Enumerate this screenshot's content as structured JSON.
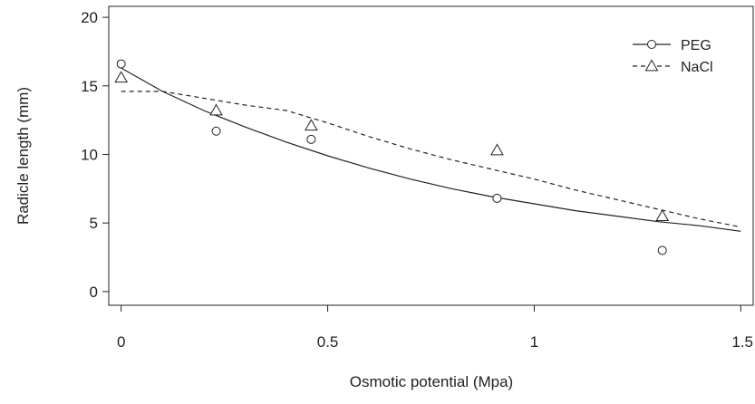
{
  "chart_data": {
    "type": "scatter",
    "xlabel": "Osmotic potential (Mpa)",
    "ylabel": "Radicle length (mm)",
    "xlim": [
      -0.03,
      1.53
    ],
    "ylim": [
      -1,
      20.8
    ],
    "xticks": [
      0,
      0.5,
      1,
      1.5
    ],
    "xtick_labels": [
      "0",
      "0.5",
      "1",
      "1.5"
    ],
    "yticks": [
      0,
      5,
      10,
      15,
      20
    ],
    "ytick_labels": [
      "0",
      "5",
      "10",
      "15",
      "20"
    ],
    "legend_position": "top-right",
    "grid": false,
    "series": [
      {
        "name": "PEG",
        "marker": "circle",
        "line_style": "solid",
        "points": [
          {
            "x": 0,
            "y": 16.6
          },
          {
            "x": 0.23,
            "y": 11.7
          },
          {
            "x": 0.46,
            "y": 11.1
          },
          {
            "x": 0.91,
            "y": 6.8
          },
          {
            "x": 1.31,
            "y": 3.0
          }
        ],
        "fit": [
          {
            "x": 0,
            "y": 16.3
          },
          {
            "x": 0.1,
            "y": 14.6
          },
          {
            "x": 0.2,
            "y": 13.2
          },
          {
            "x": 0.3,
            "y": 12.0
          },
          {
            "x": 0.4,
            "y": 10.9
          },
          {
            "x": 0.5,
            "y": 9.9
          },
          {
            "x": 0.6,
            "y": 9.0
          },
          {
            "x": 0.7,
            "y": 8.2
          },
          {
            "x": 0.8,
            "y": 7.5
          },
          {
            "x": 0.9,
            "y": 6.9
          },
          {
            "x": 1.0,
            "y": 6.4
          },
          {
            "x": 1.1,
            "y": 5.9
          },
          {
            "x": 1.2,
            "y": 5.5
          },
          {
            "x": 1.3,
            "y": 5.1
          },
          {
            "x": 1.4,
            "y": 4.8
          },
          {
            "x": 1.5,
            "y": 4.4
          }
        ]
      },
      {
        "name": "NaCl",
        "marker": "triangle",
        "line_style": "dashed",
        "points": [
          {
            "x": 0,
            "y": 15.6
          },
          {
            "x": 0.23,
            "y": 13.2
          },
          {
            "x": 0.46,
            "y": 12.1
          },
          {
            "x": 0.91,
            "y": 10.3
          },
          {
            "x": 1.31,
            "y": 5.5
          }
        ],
        "fit": [
          {
            "x": 0,
            "y": 14.6
          },
          {
            "x": 0.1,
            "y": 14.6
          },
          {
            "x": 0.2,
            "y": 14.1
          },
          {
            "x": 0.3,
            "y": 13.6
          },
          {
            "x": 0.4,
            "y": 13.2
          },
          {
            "x": 0.5,
            "y": 12.3
          },
          {
            "x": 0.6,
            "y": 11.3
          },
          {
            "x": 0.7,
            "y": 10.4
          },
          {
            "x": 0.8,
            "y": 9.6
          },
          {
            "x": 0.9,
            "y": 8.9
          },
          {
            "x": 1.0,
            "y": 8.2
          },
          {
            "x": 1.1,
            "y": 7.4
          },
          {
            "x": 1.2,
            "y": 6.7
          },
          {
            "x": 1.3,
            "y": 6.0
          },
          {
            "x": 1.4,
            "y": 5.3
          },
          {
            "x": 1.5,
            "y": 4.7
          }
        ]
      }
    ]
  }
}
